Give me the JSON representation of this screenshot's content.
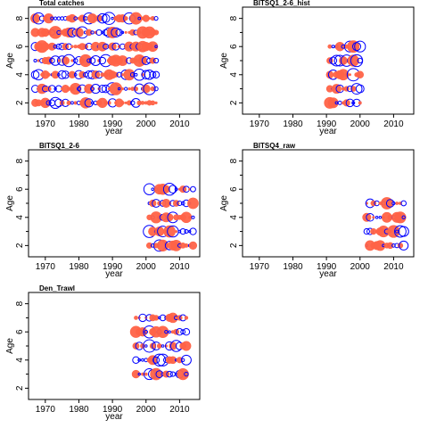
{
  "colors": {
    "positive": "#0000ff",
    "negative": "#ff0000",
    "negative_fill": "#ff6347",
    "frame": "#000000"
  },
  "chart_data": [
    {
      "type": "scatter",
      "title": "Total catches",
      "xlabel": "year",
      "ylabel": "Age",
      "xlim": [
        1965,
        2016
      ],
      "ylim": [
        1.2,
        8.8
      ],
      "xticks": [
        "1970",
        "1980",
        "1990",
        "2000",
        "2010"
      ],
      "yticks": [
        "2",
        "4",
        "6",
        "8"
      ],
      "years": [
        1967,
        2003
      ],
      "ages": [
        2,
        3,
        4,
        5,
        6,
        7,
        8
      ]
    },
    {
      "type": "scatter",
      "title": "BITSQ1_2-6_hist",
      "xlabel": "year",
      "ylabel": "Age",
      "xlim": [
        1965,
        2016
      ],
      "ylim": [
        1.2,
        8.8
      ],
      "xticks": [
        "1970",
        "1980",
        "1990",
        "2000",
        "2010"
      ],
      "yticks": [
        "2",
        "4",
        "6",
        "8"
      ],
      "years": [
        1991,
        2000
      ],
      "ages": [
        2,
        3,
        4,
        5,
        6
      ]
    },
    {
      "type": "scatter",
      "title": "BITSQ1_2-6",
      "xlabel": "year",
      "ylabel": "Age",
      "xlim": [
        1965,
        2016
      ],
      "ylim": [
        1.2,
        8.8
      ],
      "xticks": [
        "1970",
        "1980",
        "1990",
        "2000",
        "2010"
      ],
      "yticks": [
        "2",
        "4",
        "6",
        "8"
      ],
      "years": [
        2001,
        2014
      ],
      "ages": [
        2,
        3,
        4,
        5,
        6
      ]
    },
    {
      "type": "scatter",
      "title": "BITSQ4_raw",
      "xlabel": "year",
      "ylabel": "Age",
      "xlim": [
        1965,
        2016
      ],
      "ylim": [
        1.2,
        8.8
      ],
      "xticks": [
        "1970",
        "1980",
        "1990",
        "2000",
        "2010"
      ],
      "yticks": [
        "2",
        "4",
        "6",
        "8"
      ],
      "years": [
        2002,
        2013
      ],
      "ages": [
        2,
        3,
        4,
        5
      ]
    },
    {
      "type": "scatter",
      "title": "Den_Trawl",
      "xlabel": "year",
      "ylabel": "Age",
      "xlim": [
        1965,
        2016
      ],
      "ylim": [
        1.2,
        8.8
      ],
      "xticks": [
        "1970",
        "1980",
        "1990",
        "2000",
        "2010"
      ],
      "yticks": [
        "2",
        "4",
        "6",
        "8"
      ],
      "years": [
        1997,
        2012
      ],
      "ages": [
        3,
        4,
        5,
        6,
        7
      ]
    }
  ]
}
